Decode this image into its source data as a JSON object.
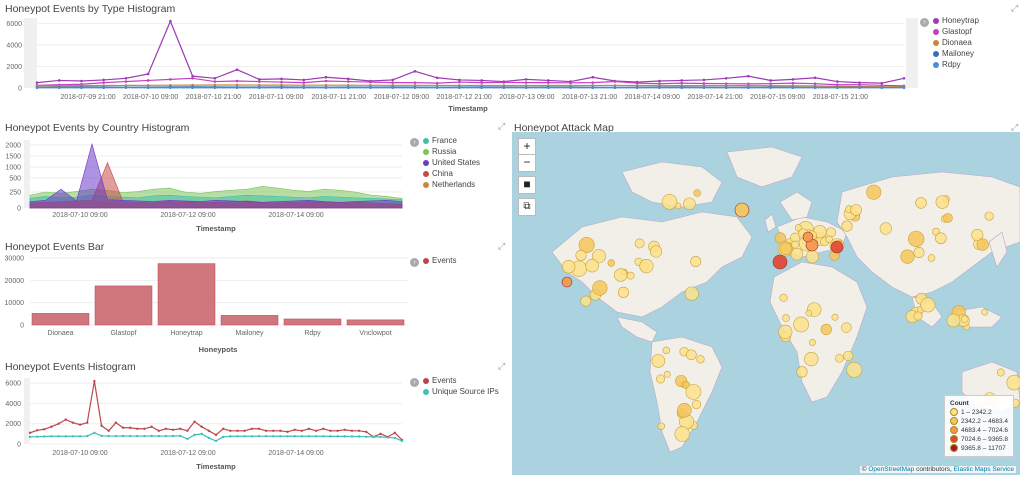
{
  "panels": {
    "type_hist": {
      "title": "Honeypot Events by Type Histogram",
      "yticks": [
        "6000",
        "4000",
        "2000",
        "0"
      ],
      "xticks": [
        "2018-07-09 21:00",
        "2018-07-10 09:00",
        "2018-07-10 21:00",
        "2018-07-11 09:00",
        "2018-07-11 21:00",
        "2018-07-12 09:00",
        "2018-07-12 21:00",
        "2018-07-13 09:00",
        "2018-07-13 21:00",
        "2018-07-14 09:00",
        "2018-07-14 21:00",
        "2018-07-15 09:00",
        "2018-07-15 21:00"
      ],
      "xlabel": "Timestamp",
      "legend": [
        {
          "name": "Honeytrap",
          "color": "#9b3bb5"
        },
        {
          "name": "Glastopf",
          "color": "#c43fc4"
        },
        {
          "name": "Dionaea",
          "color": "#c8873a"
        },
        {
          "name": "Mailoney",
          "color": "#3a6fb5"
        },
        {
          "name": "Rdpy",
          "color": "#4a8fd6"
        }
      ]
    },
    "country_hist": {
      "title": "Honeypot Events by Country Histogram",
      "yticks": [
        "2000",
        "1500",
        "1000",
        "500",
        "250",
        "0"
      ],
      "xticks": [
        "2018-07-10 09:00",
        "2018-07-12 09:00",
        "2018-07-14 09:00"
      ],
      "xlabel": "Timestamp",
      "legend": [
        {
          "name": "France",
          "color": "#3fbfa8"
        },
        {
          "name": "Russia",
          "color": "#7cc35a"
        },
        {
          "name": "United States",
          "color": "#6a3bc8"
        },
        {
          "name": "China",
          "color": "#c84a4a"
        },
        {
          "name": "Netherlands",
          "color": "#c8873a"
        }
      ]
    },
    "bar": {
      "title": "Honeypot Events Bar",
      "xlabel": "Honeypots",
      "legend": [
        {
          "name": "Events",
          "color": "#c0454b"
        }
      ]
    },
    "events_hist": {
      "title": "Honeypot Events Histogram",
      "yticks": [
        "6000",
        "4000",
        "2000",
        "0"
      ],
      "xticks": [
        "2018-07-10 09:00",
        "2018-07-12 09:00",
        "2018-07-14 09:00"
      ],
      "xlabel": "Timestamp",
      "legend": [
        {
          "name": "Events",
          "color": "#c0454b"
        },
        {
          "name": "Unique Source IPs",
          "color": "#3fbfb8"
        }
      ]
    },
    "map": {
      "title": "Honeypot Attack Map",
      "zoom_in": "+",
      "zoom_out": "−",
      "legend_title": "Count",
      "legend_rows": [
        {
          "label": "1 – 2342.2",
          "color": "#fde28c"
        },
        {
          "label": "2342.2 – 4683.4",
          "color": "#f7c65a"
        },
        {
          "label": "4683.4 – 7024.6",
          "color": "#f3954a"
        },
        {
          "label": "7024.6 – 9365.8",
          "color": "#e0452f"
        },
        {
          "label": "9365.8 – 11707",
          "color": "#a8162a"
        }
      ],
      "attribution_prefix": "©",
      "attribution_link": "OpenStreetMap",
      "attribution_mid": "contributors,",
      "attribution_link2": "Elastic Maps Service"
    }
  },
  "chart_data": [
    {
      "type": "line",
      "title": "Honeypot Events by Type Histogram",
      "xlabel": "Timestamp",
      "ylim": [
        0,
        6500
      ],
      "series": [
        {
          "name": "Honeytrap",
          "values": [
            500,
            700,
            650,
            750,
            900,
            1300,
            6200,
            1100,
            900,
            1700,
            800,
            850,
            750,
            1000,
            850,
            650,
            750,
            1550,
            950,
            750,
            700,
            600,
            800,
            700,
            600,
            1000,
            650,
            550,
            650,
            700,
            750,
            900,
            1100,
            700,
            800,
            950,
            600,
            500,
            450,
            900
          ]
        },
        {
          "name": "Glastopf",
          "values": [
            250,
            300,
            350,
            500,
            600,
            700,
            800,
            900,
            600,
            650,
            600,
            550,
            500,
            650,
            600,
            550,
            500,
            500,
            450,
            550,
            500,
            520,
            500,
            500,
            480,
            500,
            600,
            450,
            400,
            450,
            420,
            400,
            380,
            400,
            450,
            400,
            300,
            300,
            250,
            200
          ]
        },
        {
          "name": "Dionaea",
          "values": [
            200,
            210,
            220,
            230,
            240,
            250,
            260,
            270,
            280,
            280,
            270,
            270,
            260,
            260,
            260,
            250,
            250,
            250,
            240,
            240,
            240,
            230,
            230,
            230,
            230,
            240,
            240,
            230,
            230,
            220,
            220,
            220,
            220,
            210,
            210,
            200,
            150,
            130,
            120,
            110
          ]
        },
        {
          "name": "Mailoney",
          "values": [
            60,
            80,
            90,
            80,
            70,
            80,
            100,
            110,
            90,
            80,
            80,
            90,
            80,
            70,
            80,
            80,
            90,
            80,
            70,
            80,
            90,
            80,
            70,
            80,
            80,
            70,
            60,
            70,
            80,
            80,
            70,
            60,
            70,
            80,
            70,
            60,
            60,
            60,
            50,
            50
          ]
        },
        {
          "name": "Rdpy",
          "values": [
            20,
            25,
            20,
            25,
            30,
            25,
            20,
            25,
            20,
            25,
            25,
            20,
            25,
            20,
            25,
            20,
            25,
            20,
            25,
            20,
            25,
            20,
            25,
            20,
            25,
            20,
            25,
            20,
            25,
            20,
            25,
            20,
            25,
            20,
            25,
            20,
            20,
            20,
            20,
            20
          ]
        }
      ]
    },
    {
      "type": "area",
      "title": "Honeypot Events by Country Histogram",
      "xlabel": "Timestamp",
      "ylim": [
        0,
        2200
      ],
      "series": [
        {
          "name": "France",
          "values": [
            150,
            180,
            160,
            170,
            200,
            180,
            170,
            160,
            190,
            200,
            180,
            170,
            160,
            180,
            200,
            190,
            180,
            170,
            160,
            180,
            170,
            160,
            150,
            140,
            130
          ]
        },
        {
          "name": "Russia",
          "values": [
            200,
            250,
            230,
            260,
            300,
            280,
            240,
            260,
            300,
            320,
            250,
            230,
            260,
            280,
            300,
            350,
            320,
            280,
            260,
            300,
            280,
            250,
            200,
            180,
            150
          ]
        },
        {
          "name": "United States",
          "values": [
            100,
            120,
            300,
            110,
            2100,
            130,
            120,
            110,
            100,
            120,
            110,
            100,
            120,
            110,
            100,
            90,
            100,
            110,
            120,
            100,
            90,
            100,
            110,
            120,
            100
          ]
        },
        {
          "name": "China",
          "values": [
            80,
            90,
            100,
            110,
            120,
            1200,
            100,
            90,
            80,
            100,
            90,
            80,
            90,
            100,
            110,
            90,
            80,
            90,
            100,
            90,
            80,
            90,
            80,
            70,
            60
          ]
        },
        {
          "name": "Netherlands",
          "values": [
            60,
            70,
            80,
            90,
            100,
            90,
            80,
            70,
            80,
            90,
            100,
            90,
            80,
            70,
            80,
            90,
            80,
            70,
            80,
            90,
            80,
            70,
            60,
            50,
            40
          ]
        }
      ]
    },
    {
      "type": "bar",
      "title": "Honeypot Events Bar",
      "xlabel": "Honeypots",
      "categories": [
        "Dionaea",
        "Glastopf",
        "Honeytrap",
        "Mailoney",
        "Rdpy",
        "Vnclowpot"
      ],
      "values": [
        5200,
        17500,
        27500,
        4300,
        2700,
        2300
      ],
      "ylim": [
        0,
        30000
      ],
      "yticks": [
        "30000",
        "20000",
        "10000",
        "0"
      ]
    },
    {
      "type": "line",
      "title": "Honeypot Events Histogram",
      "xlabel": "Timestamp",
      "ylim": [
        0,
        6500
      ],
      "series": [
        {
          "name": "Events",
          "values": [
            1100,
            1350,
            1450,
            1700,
            2000,
            2400,
            2100,
            1900,
            2100,
            6200,
            1800,
            1300,
            2100,
            1600,
            1600,
            1500,
            1500,
            1700,
            1300,
            1500,
            1400,
            1500,
            1300,
            2200,
            1700,
            1300,
            900,
            1500,
            1300,
            1300,
            1300,
            1500,
            1500,
            1300,
            1300,
            1300,
            1200,
            1400,
            1300,
            1500,
            1300,
            1500,
            1300,
            1300,
            1400,
            1300,
            1300,
            1200,
            700,
            1000,
            700,
            1100,
            400
          ]
        },
        {
          "name": "Unique Source IPs",
          "values": [
            700,
            720,
            740,
            760,
            760,
            750,
            760,
            760,
            780,
            1100,
            800,
            780,
            780,
            790,
            780,
            780,
            780,
            790,
            780,
            780,
            790,
            800,
            500,
            900,
            1000,
            600,
            300,
            700,
            750,
            760,
            760,
            760,
            770,
            770,
            760,
            760,
            760,
            770,
            760,
            760,
            760,
            760,
            750,
            750,
            750,
            740,
            740,
            720,
            700,
            700,
            650,
            600,
            300
          ]
        }
      ]
    }
  ]
}
